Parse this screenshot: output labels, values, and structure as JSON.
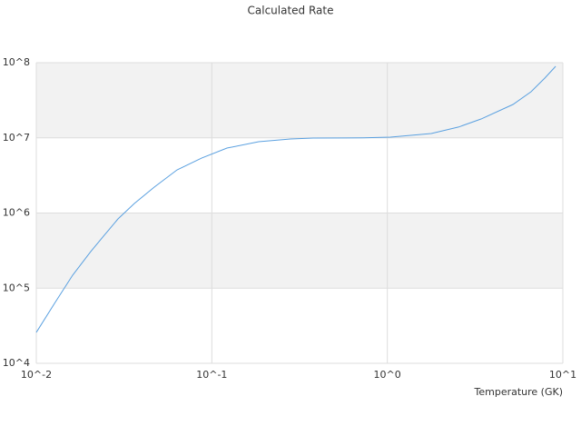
{
  "chart_data": {
    "type": "line",
    "title": "Calculated Rate",
    "x_label": "Temperature (GK)",
    "x": [
      0.01,
      0.0127,
      0.0161,
      0.0204,
      0.0244,
      0.0292,
      0.0362,
      0.047,
      0.0634,
      0.0874,
      0.122,
      0.185,
      0.281,
      0.378,
      0.728,
      1.04,
      1.78,
      2.54,
      3.42,
      5.2,
      6.59,
      7.89,
      9.1
    ],
    "series": [
      {
        "name": "Rate",
        "color": "#5aa0e0",
        "values": [
          25800,
          62800,
          148600,
          306000,
          506000,
          834000,
          1340000,
          2210000,
          3750000,
          5380000,
          7310000,
          8890000,
          9660000,
          9930000,
          10000000,
          10200000,
          11400000,
          13900000,
          17800000,
          27800000,
          41000000,
          62300000,
          89500000
        ]
      }
    ],
    "xlog": true,
    "ylog": true,
    "xlim": [
      0.01,
      10
    ],
    "ylim": [
      10000,
      100000000
    ],
    "xticks": [
      {
        "value": 0.01,
        "label": "10^-2"
      },
      {
        "value": 0.1,
        "label": "10^-1"
      },
      {
        "value": 1,
        "label": "10^0"
      },
      {
        "value": 10,
        "label": "10^1"
      }
    ],
    "yticks": [
      {
        "value": 10000,
        "label": "10^4"
      },
      {
        "value": 100000,
        "label": "10^5"
      },
      {
        "value": 1000000,
        "label": "10^6"
      },
      {
        "value": 10000000,
        "label": "10^7"
      },
      {
        "value": 100000000,
        "label": "10^8"
      }
    ],
    "grid": true,
    "band_color": "#f2f2f2"
  }
}
